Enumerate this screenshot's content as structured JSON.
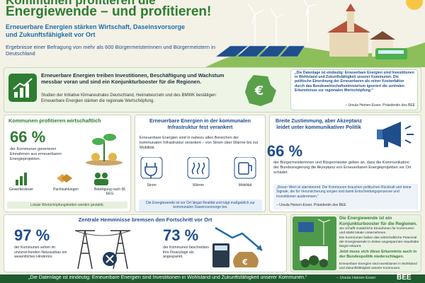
{
  "header": {
    "title_top": "Kommunen profitieren die",
    "title": "Energiewende – und profitieren!",
    "subtitle": "Erneuerbare Energien stärken Wirtschaft, Daseinsvorsorge und Zukunftsfähigkeit vor Ort",
    "survey": "Ergebnisse einer Befragung von mehr als 600 Bürgermeisterinnen und Bürgermeistern in Deutschland"
  },
  "intro": {
    "headline": "Erneuerbare Energien treiben Investitionen, Beschäftigung und Wachstum messbar voran und sind ein Konjunkturbooster für die Regionen.",
    "text": "Studien der Initiative Klimaneutrales Deutschland, Heimatwurzeln und des BMWK bestätigen: Erneuerbare Energien stärken die regionale Wertschöpfung.",
    "quote": "„Die Datenlage ist eindeutig: Erneuerbare Energien sind Investitionen in Wohlstand und Zukunftsfähigkeit unserer Kommunen. Die politische Einordnung der Erneuerbaren als reiner Kostenfaktor durch das Bundeswirtschaftsministerium ignoriert die zentralen Erkenntnisse zur regionalen Wertschöpfung.“",
    "quote_author": "– Ursula Heinen-Esser, Präsidentin des BEE"
  },
  "economy": {
    "title": "Kommunen profitieren wirtschaftlich",
    "stat": "66 %",
    "stat_text": "der Kommunen generieren Einnahmen aus erneuerbaren Energieprojekten.",
    "items": [
      "Gewerbesteuer",
      "Pachtzahlungen",
      "Beteiligung nach §6 EEG"
    ],
    "footer": "Lokale Wertschöpfungsketten werden gestärkt."
  },
  "infrastructure": {
    "title": "Erneuerbare Energien in der kommunalen Infrastruktur fest verankert",
    "text": "Erneuerbare Energien sind in nahezu allen Bereichen der kommunalen Infrastruktur verankert – von Strom über Wärme bis zur Mobilität.",
    "items": [
      "Strom",
      "Wärme",
      "Mobilität"
    ],
    "footer": "Die Energiewende ist vor Ort längst Realität und trägt maßgeblich zur kommunalen Daseinsvorsorge bei."
  },
  "acceptance": {
    "title": "Breite Zustimmung, aber Akzeptanz leidet unter kommunikativer Politik",
    "stat": "66 %",
    "stat_text": "der Bürgermeisterinnen und Bürgermeister geben an, dass die Kommunikation der Bundesregierung die Akzeptanz von Erneuerbaren Energieprojekten vor Ort schadet.",
    "quote": "„Dieser Wert ist alarmierend. Die Kommunen brauchen politischen Rückhalt und keine Signale, die für Verunsicherung sorgen und damit Entscheidungsprozesse und Investitionen ausbremsen.“",
    "quote_author": "– Ursula Heinen-Esser, Präsidentin des BEE"
  },
  "barriers": {
    "title": "Zentrale Hemmnisse bremsen den Fortschritt vor Ort",
    "stats": [
      {
        "value": "97 %",
        "text": "der Kommunen sehen im unzureichenden Netzausbau ein wesentliches Hindernis."
      },
      {
        "value": "73 %",
        "text": "der Kommunen beschreiben ihre Finanzlage als angespannt."
      }
    ]
  },
  "conclusion": {
    "title": "Die Energiewende ist ein Konjunkturbooster für die Regionen.",
    "lines": [
      "Sie schafft zusätzliche Einnahmen für Kommunen und stärkt lokale Unternehmen.",
      "Die Kommunen haben das wirtschaftliche Potenzial der Energiewende in Zeiten angespannter Haushalte längst erkannt."
    ],
    "highlight": "Jetzt muss sich diese Erkenntnis auch in der Bundespolitik niederschlagen.",
    "closing": "Erneuerbare Energien sind Investitionen in Wohlstand und Zukunftsfähigkeit unserer Kommunen."
  },
  "footer": {
    "quote": "„Die Datenlage ist eindeutig: Erneuerbare Energien sind Investitionen in Wohlstand und Zukunftsfähigkeit unserer Kommunen.“",
    "author": "– Ursula Heinen-Esser",
    "logo": "BEE"
  }
}
